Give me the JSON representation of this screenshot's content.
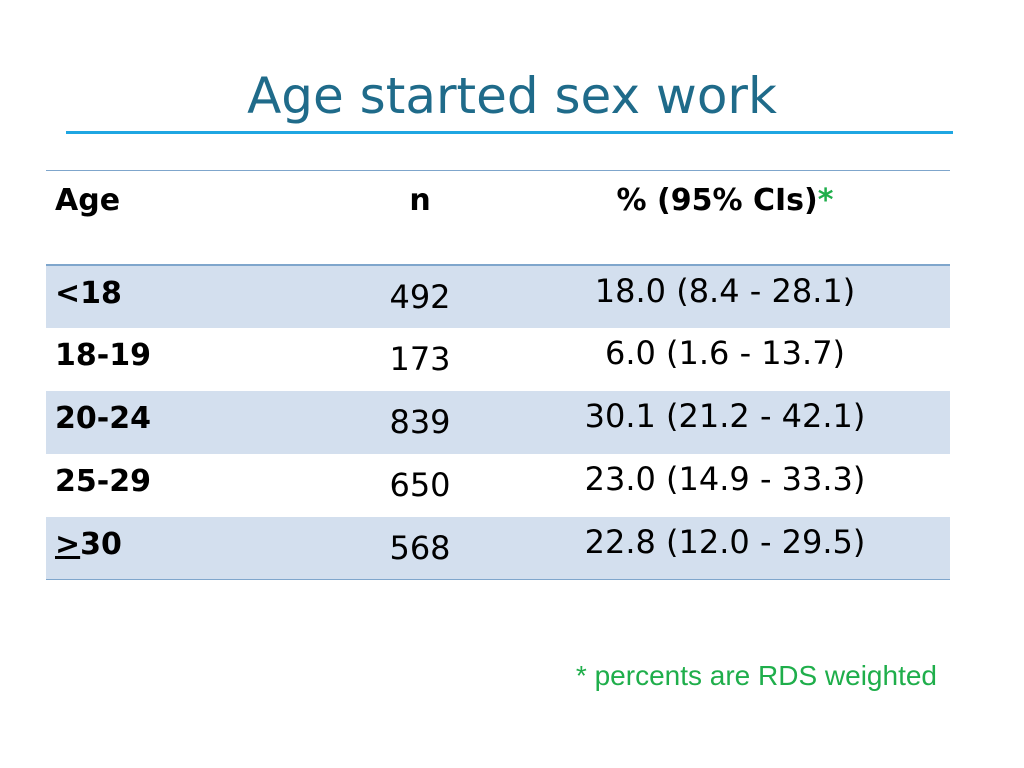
{
  "title": "Age started sex work",
  "table": {
    "headers": {
      "age": "Age",
      "n": "n",
      "pct": "% (95% CIs)",
      "pct_marker": "*"
    },
    "rows": [
      {
        "age": "<18",
        "n": "492",
        "pct": "18.0 (8.4 - 28.1)"
      },
      {
        "age": "18-19",
        "n": "173",
        "pct": "6.0 (1.6 - 13.7)"
      },
      {
        "age": "20-24",
        "n": "839",
        "pct": "30.1 (21.2 - 42.1)"
      },
      {
        "age": "25-29",
        "n": "650",
        "pct": "23.0 (14.9 - 33.3)"
      },
      {
        "age_symbol": ">",
        "age_value": "30",
        "n": "568",
        "pct": "22.8 (12.0 - 29.5)"
      }
    ]
  },
  "footnote": "* percents are RDS weighted",
  "colors": {
    "title": "#1f6b8a",
    "title_rule": "#1fa6e2",
    "row_shade": "#d3dfee",
    "footnote": "#1fae4b"
  }
}
